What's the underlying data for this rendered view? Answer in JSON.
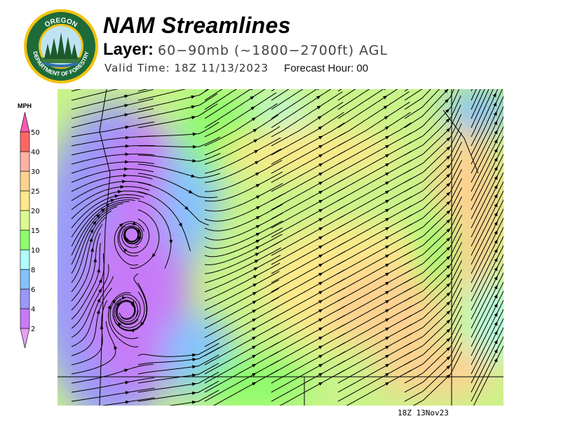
{
  "logo": {
    "text_top": "OREGON",
    "text_bottom": "DEPARTMENT OF FORESTRY"
  },
  "header": {
    "title": "NAM Streamlines",
    "layer_label": "Layer:",
    "layer_value": "60−90mb (~1800−2700ft) AGL",
    "valid_time": "Valid Time: 18Z  11/13/2023",
    "forecast_hour": "Forecast Hour: 00"
  },
  "legend": {
    "unit": "MPH",
    "levels": [
      "2",
      "4",
      "6",
      "8",
      "10",
      "15",
      "20",
      "25",
      "30",
      "40",
      "50"
    ],
    "colors": [
      "#e6a0f5",
      "#c77af7",
      "#9a99fb",
      "#84c2fc",
      "#b0fdfb",
      "#8efc6c",
      "#dbfb91",
      "#fde98b",
      "#fdd291",
      "#feb2a4",
      "#fe6666",
      "#fa5ab4"
    ]
  },
  "map": {
    "timestamp": "18Z 13Nov23"
  }
}
